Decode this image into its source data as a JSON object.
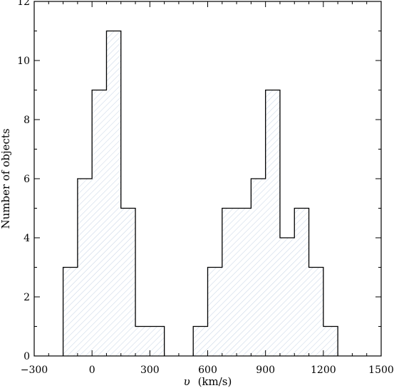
{
  "chart_data": {
    "type": "bar",
    "subtype": "histogram",
    "xlabel": "v (km/s)",
    "xlabel_symbol": "υ",
    "xlabel_unit": "(km/s)",
    "ylabel": "Number of objects",
    "xlim": [
      -300,
      1500
    ],
    "ylim": [
      0,
      12
    ],
    "x_ticks": [
      -300,
      0,
      300,
      600,
      900,
      1200,
      1500
    ],
    "y_ticks": [
      0,
      2,
      4,
      6,
      8,
      10,
      12
    ],
    "x_tick_labels": [
      "−300",
      "0",
      "300",
      "600",
      "900",
      "1200",
      "1500"
    ],
    "y_tick_labels": [
      "0",
      "2",
      "4",
      "6",
      "8",
      "10",
      "12"
    ],
    "x_minor_step": 75,
    "y_minor_step": 1,
    "bin_width": 75,
    "bin_edges": [
      -150,
      -75,
      0,
      75,
      150,
      225,
      300,
      375,
      450,
      525,
      600,
      675,
      750,
      825,
      900,
      975,
      1050,
      1125,
      1200,
      1275
    ],
    "counts": [
      3,
      6,
      9,
      11,
      5,
      1,
      1,
      0,
      0,
      1,
      3,
      5,
      5,
      6,
      9,
      4,
      5,
      3,
      1
    ],
    "fill": "hatched",
    "hatch_color": "#c9d6e6",
    "outline_color": "#000000",
    "grid": false
  }
}
